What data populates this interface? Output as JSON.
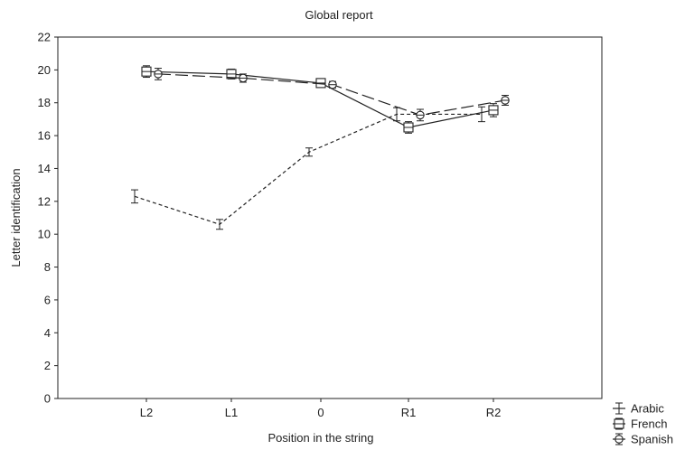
{
  "chart_data": {
    "type": "line",
    "title": "Global report",
    "xlabel": "Position in the string",
    "ylabel": "Letter identification",
    "categories": [
      "L2",
      "L1",
      "0",
      "R1",
      "R2"
    ],
    "ylim": [
      0,
      22
    ],
    "yticks": [
      0,
      2,
      4,
      6,
      8,
      10,
      12,
      14,
      16,
      18,
      20,
      22
    ],
    "grid": false,
    "legend_position": "bottom-right",
    "series": [
      {
        "name": "Arabic",
        "line_style": "short-dash",
        "marker": "none",
        "values": [
          12.3,
          10.6,
          15.0,
          17.3,
          17.3
        ],
        "errors": [
          0.4,
          0.3,
          0.25,
          0.4,
          0.45
        ]
      },
      {
        "name": "French",
        "line_style": "solid",
        "marker": "square",
        "values": [
          19.9,
          19.75,
          19.2,
          16.5,
          17.55
        ],
        "errors": [
          0.35,
          0.3,
          0.2,
          0.35,
          0.4
        ]
      },
      {
        "name": "Spanish",
        "line_style": "long-dash",
        "marker": "diamond",
        "values": [
          19.75,
          19.5,
          19.1,
          17.25,
          18.15
        ],
        "errors": [
          0.35,
          0.25,
          0.2,
          0.35,
          0.3
        ]
      }
    ]
  }
}
